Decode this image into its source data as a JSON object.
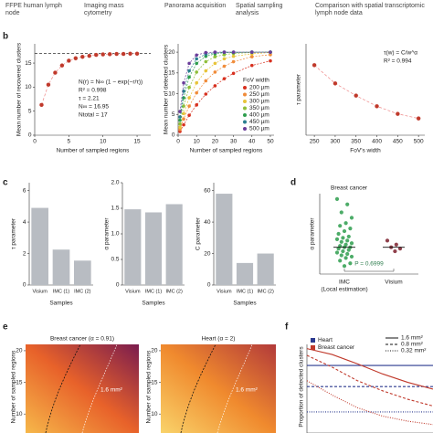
{
  "header": [
    "FFPE human lymph node",
    "Imaging mass cytometry",
    "Panorama acquisition",
    "Spatial sampling analysis",
    "Comparison with spatial transcriptomic lymph node data"
  ],
  "panel_labels": [
    "b",
    "c",
    "d",
    "e",
    "f"
  ],
  "chart_data": [
    {
      "type": "scatter",
      "x_label": "Number of sampled regions",
      "y_label": "Mean number of recovered clusters",
      "x": [
        1,
        2,
        3,
        4,
        5,
        6,
        7,
        8,
        9,
        10,
        11,
        12,
        13,
        14,
        15
      ],
      "values": [
        6.3,
        10.5,
        13,
        14.5,
        15.5,
        16,
        16.3,
        16.5,
        16.7,
        16.8,
        16.85,
        16.9,
        16.9,
        16.95,
        16.95
      ],
      "color": "#c0392b",
      "total_line": 17,
      "xlim": [
        0,
        17
      ],
      "ylim": [
        0,
        19
      ],
      "xticks": [
        0,
        5,
        10,
        15
      ],
      "yticks": [
        0,
        5,
        10,
        15
      ],
      "annotations": [
        "N(r) = N∞ (1 − exp(−r/τ))",
        "R² = 0.998",
        "τ = 2.21",
        "N∞ = 16.95",
        "Ntotal = 17"
      ]
    },
    {
      "type": "line",
      "x_label": "Number of sampled regions",
      "y_label": "Mean number of detected clusters",
      "legend_title": "FoV width",
      "x": [
        1,
        3,
        6,
        10,
        15,
        20,
        25,
        30,
        40,
        50
      ],
      "series": [
        {
          "name": "200 µm",
          "color": "#d7301f",
          "values": [
            0.9,
            2.5,
            4.8,
            7.3,
            9.9,
            11.9,
            13.6,
            14.9,
            16.8,
            17.9
          ]
        },
        {
          "name": "250 µm",
          "color": "#f08c3a",
          "values": [
            1.4,
            3.9,
            7.0,
            10.2,
            13.1,
            15.2,
            16.6,
            17.7,
            18.9,
            19.4
          ]
        },
        {
          "name": "300 µm",
          "color": "#e8c43a",
          "values": [
            1.9,
            5.2,
            9.0,
            12.6,
            15.5,
            17.3,
            18.4,
            19.0,
            19.6,
            19.9
          ]
        },
        {
          "name": "350 µm",
          "color": "#8fbf3a",
          "values": [
            2.7,
            7.0,
            11.5,
            15.2,
            17.7,
            18.9,
            19.4,
            19.7,
            19.9,
            20.0
          ]
        },
        {
          "name": "400 µm",
          "color": "#2e9e4e",
          "values": [
            3.6,
            9.0,
            14.0,
            17.3,
            19.0,
            19.6,
            19.9,
            19.9,
            20.0,
            20.0
          ]
        },
        {
          "name": "450 µm",
          "color": "#2a7f8f",
          "values": [
            4.4,
            10.6,
            15.5,
            18.4,
            19.5,
            19.9,
            20,
            20,
            20,
            20
          ]
        },
        {
          "name": "500 µm",
          "color": "#6a3d9a",
          "values": [
            5.7,
            12.6,
            17.3,
            19.3,
            19.9,
            20,
            20,
            20,
            20,
            20
          ]
        }
      ],
      "xlim": [
        0,
        52
      ],
      "ylim": [
        0,
        22
      ],
      "xticks": [
        0,
        10,
        20,
        30,
        40,
        50
      ],
      "yticks": [
        0,
        5,
        10,
        15,
        20
      ]
    },
    {
      "type": "scatter",
      "x_label": "FoV's width",
      "y_label": "τ parameter",
      "x": [
        250,
        300,
        350,
        400,
        450,
        500
      ],
      "values": [
        4.6,
        3.4,
        2.6,
        1.9,
        1.4,
        1.1
      ],
      "color": "#c0392b",
      "xlim": [
        230,
        515
      ],
      "ylim": [
        0,
        6
      ],
      "xticks": [
        250,
        300,
        350,
        400,
        450,
        500
      ],
      "yticks": [],
      "annotations": [
        "τ(w) = C/w^α",
        "R² = 0.994"
      ]
    },
    {
      "type": "bar",
      "x_label": "Samples",
      "y_label": "τ parameter",
      "categories": [
        "Visium",
        "IMC (1)",
        "IMC (2)"
      ],
      "values": [
        4.9,
        2.25,
        1.55
      ],
      "color": "#b8bcc2",
      "ylim": [
        0,
        6.5
      ],
      "yticks": [
        0,
        2,
        4,
        6
      ]
    },
    {
      "type": "bar",
      "x_label": "Samples",
      "y_label": "α parameter",
      "categories": [
        "Visium",
        "IMC (1)",
        "IMC (2)"
      ],
      "values": [
        1.48,
        1.42,
        1.58
      ],
      "color": "#b8bcc2",
      "ylim": [
        0,
        2
      ],
      "yticks": [
        0,
        0.5,
        {
          "value": 1,
          "label": "1.0"
        },
        1.5,
        {
          "value": 2,
          "label": "2.0"
        }
      ]
    },
    {
      "type": "bar",
      "x_label": "Samples",
      "y_label": "C parameter",
      "categories": [
        "Visium",
        "IMC (1)",
        "IMC (2)"
      ],
      "values": [
        58,
        14,
        20
      ],
      "color": "#b8bcc2",
      "ylim": [
        0,
        65
      ],
      "yticks": [
        0,
        20,
        40,
        60
      ]
    },
    {
      "type": "strip",
      "title": "Breast cancer",
      "y_label": "α parameter",
      "categories": [
        "IMC",
        "Visium"
      ],
      "category_notes": [
        "(Local estimation)",
        null
      ],
      "series": [
        {
          "color": "#2e9e4e",
          "values": [
            2.8,
            2.6,
            2.3,
            2.1,
            1.9,
            1.8,
            1.7,
            1.6,
            1.5,
            1.4,
            1.35,
            1.3,
            1.25,
            1.2,
            1.15,
            1.1,
            1.05,
            1.0,
            1.0,
            0.95,
            0.9,
            0.85,
            0.8,
            0.75,
            0.7,
            0.65,
            0.6,
            0.5,
            0.4,
            0.3
          ]
        },
        {
          "color": "#7b1f2b",
          "values": [
            1.25,
            1.1,
            1.0,
            0.95,
            0.85
          ]
        }
      ],
      "medians": [
        1.0,
        1.0
      ],
      "annotation": "P = 0.6999",
      "ylim": [
        0,
        3
      ],
      "yticks": []
    },
    {
      "type": "heatmap",
      "title": "Breast cancer (α = 0.91)",
      "y_label": "Number of sampled regions",
      "annotation": "1.6 mm²",
      "ylim": [
        7,
        21
      ],
      "yticks": [
        10,
        15,
        20
      ]
    },
    {
      "type": "heatmap",
      "title": "Heart (α = 2)",
      "y_label": "Number of sampled regions",
      "annotation": "1.6 mm²",
      "ylim": [
        7,
        21
      ],
      "yticks": [
        10,
        15,
        20
      ]
    },
    {
      "type": "multi_line",
      "y_label": "Proportion of detected clusters",
      "legend": [
        {
          "name": "Heart",
          "color": "#2b3a8f"
        },
        {
          "name": "Breast cancer",
          "color": "#c0392b"
        }
      ],
      "styles": [
        {
          "name": "1.6 mm²",
          "dash": "none"
        },
        {
          "name": "0.8 mm²",
          "dash": "3 2"
        },
        {
          "name": "0.32 mm²",
          "dash": "1 1.5"
        }
      ],
      "x": [
        0,
        1,
        2,
        3,
        4,
        5
      ],
      "xlim": [
        0,
        5
      ],
      "ylim": [
        0,
        1.05
      ],
      "series": [
        {
          "group": 0,
          "style": 0,
          "values": [
            0.8,
            0.8,
            0.8,
            0.8,
            0.8,
            0.8
          ]
        },
        {
          "group": 0,
          "style": 1,
          "values": [
            0.55,
            0.55,
            0.55,
            0.55,
            0.55,
            0.55
          ]
        },
        {
          "group": 0,
          "style": 2,
          "values": [
            0.25,
            0.25,
            0.25,
            0.25,
            0.25,
            0.25
          ]
        },
        {
          "group": 1,
          "style": 0,
          "values": [
            1.0,
            0.93,
            0.82,
            0.7,
            0.6,
            0.52
          ]
        },
        {
          "group": 1,
          "style": 1,
          "values": [
            0.92,
            0.78,
            0.62,
            0.5,
            0.4,
            0.32
          ]
        },
        {
          "group": 1,
          "style": 2,
          "values": [
            0.62,
            0.45,
            0.3,
            0.2,
            0.14,
            0.1
          ]
        }
      ]
    }
  ]
}
